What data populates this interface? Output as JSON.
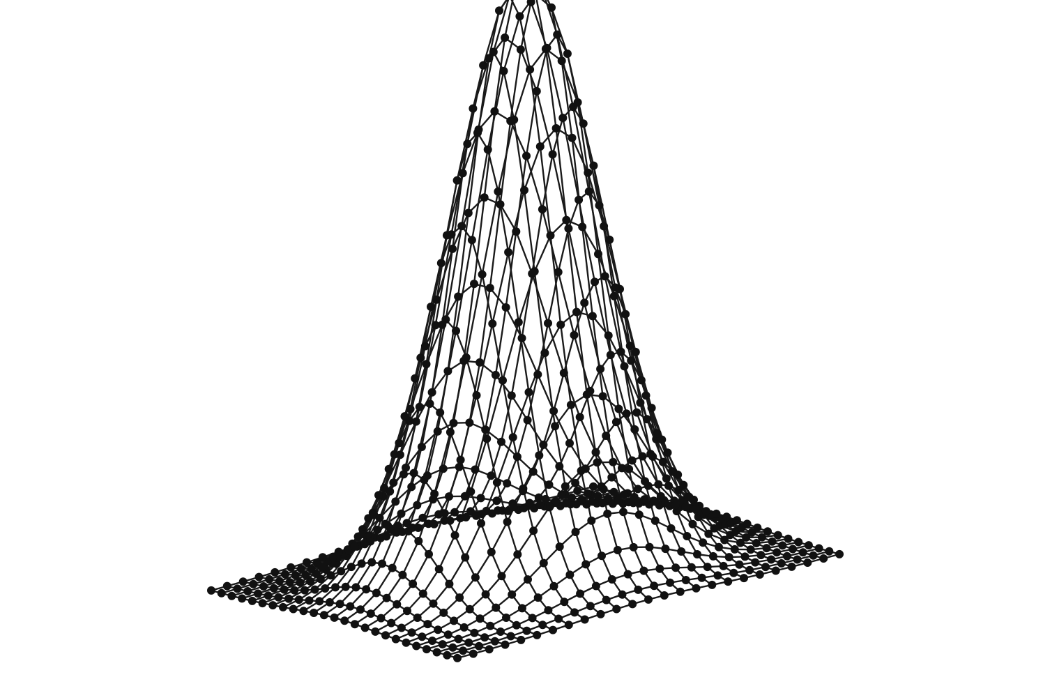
{
  "chart_data": {
    "type": "surface-3d-wireframe",
    "function": "gaussian",
    "x": [
      -3,
      -2.75,
      -2.5,
      -2.25,
      -2,
      -1.75,
      -1.5,
      -1.25,
      -1,
      -0.75,
      -0.5,
      -0.25,
      0,
      0.25,
      0.5,
      0.75,
      1,
      1.25,
      1.5,
      1.75,
      2,
      2.25,
      2.5,
      2.75,
      3
    ],
    "y": [
      -3,
      -2.75,
      -2.5,
      -2.25,
      -2,
      -1.75,
      -1.5,
      -1.25,
      -1,
      -0.75,
      -0.5,
      -0.25,
      0,
      0.25,
      0.5,
      0.75,
      1,
      1.25,
      1.5,
      1.75,
      2,
      2.25,
      2.5,
      2.75,
      3
    ],
    "z_peak": 1.0,
    "sigma": 1.0,
    "grid_points_per_axis": 25,
    "markers": "filled-circle",
    "line_color": "#1a1a1a",
    "marker_color": "#111111",
    "background_color": "#ffffff",
    "axes_visible": false,
    "grid": false,
    "legend": "none"
  }
}
